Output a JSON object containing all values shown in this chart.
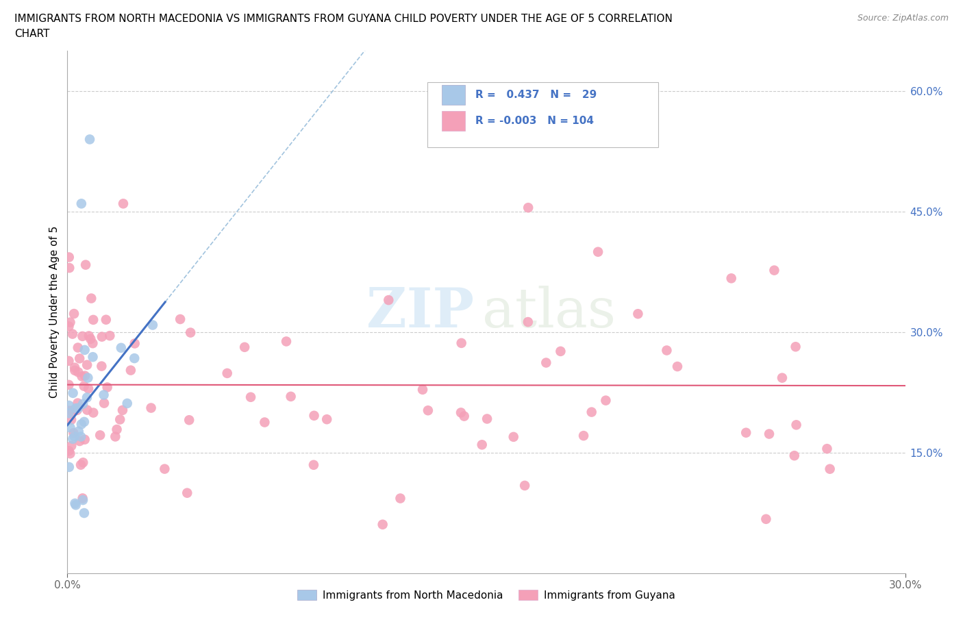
{
  "title_line1": "IMMIGRANTS FROM NORTH MACEDONIA VS IMMIGRANTS FROM GUYANA CHILD POVERTY UNDER THE AGE OF 5 CORRELATION",
  "title_line2": "CHART",
  "source": "Source: ZipAtlas.com",
  "ylabel": "Child Poverty Under the Age of 5",
  "xlim": [
    0.0,
    0.3
  ],
  "ylim": [
    0.0,
    0.65
  ],
  "ytick_right_vals": [
    0.0,
    0.15,
    0.3,
    0.45,
    0.6
  ],
  "ytick_right_labels": [
    "",
    "15.0%",
    "30.0%",
    "45.0%",
    "60.0%"
  ],
  "hlines": [
    0.15,
    0.3,
    0.45,
    0.6
  ],
  "color_blue": "#a8c8e8",
  "color_pink": "#f4a0b8",
  "line_blue": "#4472c4",
  "line_pink": "#e05878",
  "watermark_zip": "ZIP",
  "watermark_atlas": "atlas",
  "legend_text1": "R =   0.437   N =   29",
  "legend_text2": "R = -0.003   N = 104"
}
